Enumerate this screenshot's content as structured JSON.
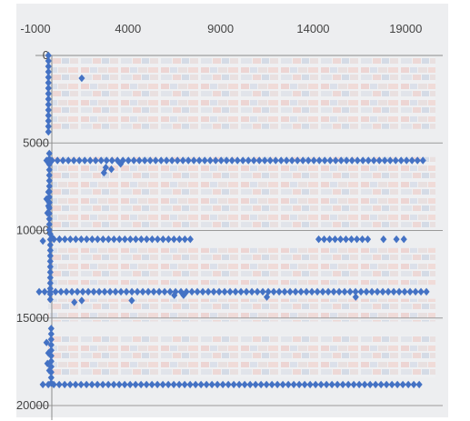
{
  "chart_data": {
    "type": "scatter",
    "title": "",
    "xlabel": "",
    "ylabel": "",
    "xlim": [
      -1000,
      21000
    ],
    "ylim": [
      0,
      20000
    ],
    "y_inverted": true,
    "x_axis_position": "top",
    "x_ticks": [
      -1000,
      4000,
      9000,
      14000,
      19000
    ],
    "y_ticks": [
      0,
      5000,
      10000,
      15000,
      20000
    ],
    "grid": true,
    "background": "aerial photo of a container terminal (stacked shipping containers in rows)",
    "marker": "diamond",
    "colors": {
      "marker": "#4472C4",
      "grid": "#9a9a9a",
      "tick_text": "#444444"
    },
    "series": [
      {
        "values": [
          [
            1500,
            1300
          ],
          [
            2700,
            6700
          ],
          [
            3100,
            6500
          ],
          [
            3600,
            6200
          ],
          [
            2800,
            6400
          ],
          [
            -400,
            8200
          ],
          [
            -300,
            8600
          ],
          [
            -350,
            9000
          ],
          [
            -250,
            8400
          ],
          [
            -300,
            7800
          ],
          [
            300,
            10500
          ],
          [
            -600,
            10600
          ],
          [
            -100,
            10400
          ],
          [
            17800,
            10500
          ],
          [
            18500,
            10500
          ],
          [
            18900,
            10500
          ],
          [
            1500,
            14000
          ],
          [
            4200,
            14000
          ],
          [
            1100,
            14100
          ],
          [
            16300,
            13800
          ],
          [
            6500,
            13700
          ],
          [
            7000,
            13700
          ],
          [
            11500,
            13800
          ],
          [
            -400,
            16400
          ],
          [
            -300,
            17000
          ],
          [
            -350,
            17600
          ],
          [
            -250,
            18000
          ]
        ]
      }
    ],
    "dense_rows": [
      {
        "y": 6000,
        "x_from": -400,
        "x_to": 20200
      },
      {
        "y": 10500,
        "x_from": 0,
        "x_to": 7500
      },
      {
        "y": 10500,
        "x_from": 14300,
        "x_to": 17000
      },
      {
        "y": 13500,
        "x_from": -800,
        "x_to": 20200
      },
      {
        "y": 18800,
        "x_from": -600,
        "x_to": 20000
      }
    ],
    "dense_columns": [
      {
        "x": -300,
        "y_from": 0,
        "y_to": 4500
      },
      {
        "x": -250,
        "y_from": 5600,
        "y_to": 10200
      },
      {
        "x": -200,
        "y_from": 10200,
        "y_to": 14100
      },
      {
        "x": -150,
        "y_from": 15600,
        "y_to": 19000
      }
    ]
  }
}
